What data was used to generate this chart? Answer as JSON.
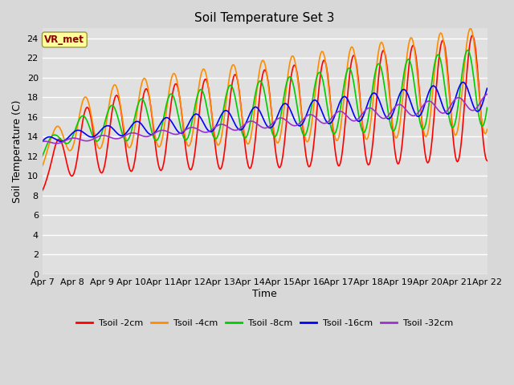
{
  "title": "Soil Temperature Set 3",
  "xlabel": "Time",
  "ylabel": "Soil Temperature (C)",
  "ylim": [
    0,
    25
  ],
  "yticks": [
    0,
    2,
    4,
    6,
    8,
    10,
    12,
    14,
    16,
    18,
    20,
    22,
    24
  ],
  "x_labels": [
    "Apr 7",
    "Apr 8",
    "Apr 9",
    "Apr 10",
    "Apr 11",
    "Apr 12",
    "Apr 13",
    "Apr 14",
    "Apr 15",
    "Apr 16",
    "Apr 17",
    "Apr 18",
    "Apr 19",
    "Apr 20",
    "Apr 21",
    "Apr 22"
  ],
  "annotation_text": "VR_met",
  "annotation_color": "#8B0000",
  "annotation_bg": "#FFFF99",
  "series_colors": [
    "#FF0000",
    "#FF8C00",
    "#00CC00",
    "#0000FF",
    "#9933CC"
  ],
  "series_labels": [
    "Tsoil -2cm",
    "Tsoil -4cm",
    "Tsoil -8cm",
    "Tsoil -16cm",
    "Tsoil -32cm"
  ],
  "line_width": 1.2,
  "fig_bg": "#D8D8D8",
  "plot_bg": "#E0E0E0",
  "n_points": 480,
  "days": 15
}
